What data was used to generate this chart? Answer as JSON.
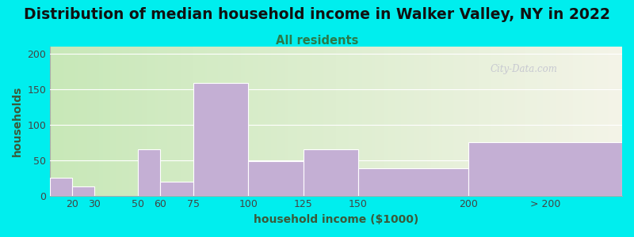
{
  "title": "Distribution of median household income in Walker Valley, NY in 2022",
  "subtitle": "All residents",
  "xlabel": "household income ($1000)",
  "ylabel": "households",
  "bar_labels": [
    "20",
    "30",
    "50",
    "60",
    "75",
    "100",
    "125",
    "150",
    "200",
    "> 200"
  ],
  "bar_heights": [
    25,
    13,
    0,
    65,
    20,
    158,
    48,
    65,
    38,
    75
  ],
  "bar_left_edges": [
    10,
    20,
    30,
    50,
    60,
    75,
    100,
    125,
    150,
    200
  ],
  "bar_widths": [
    10,
    10,
    20,
    10,
    15,
    25,
    25,
    25,
    50,
    70
  ],
  "bar_color": "#c4afd4",
  "bar_edge_color": "#c4afd4",
  "background_color": "#00EEEE",
  "plot_bg_left": "#c8e8b8",
  "plot_bg_right": "#f4f4e8",
  "yticks": [
    0,
    50,
    100,
    150,
    200
  ],
  "ylim": [
    0,
    210
  ],
  "xlim": [
    10,
    270
  ],
  "xtick_positions": [
    20,
    30,
    50,
    60,
    75,
    100,
    125,
    150,
    200,
    235
  ],
  "xtick_labels": [
    "20",
    "30",
    "50",
    "60",
    "75",
    "100",
    "125",
    "150",
    "200",
    "> 200"
  ],
  "title_fontsize": 13.5,
  "subtitle_fontsize": 10.5,
  "axis_label_fontsize": 10,
  "tick_fontsize": 9,
  "watermark": "City-Data.com"
}
